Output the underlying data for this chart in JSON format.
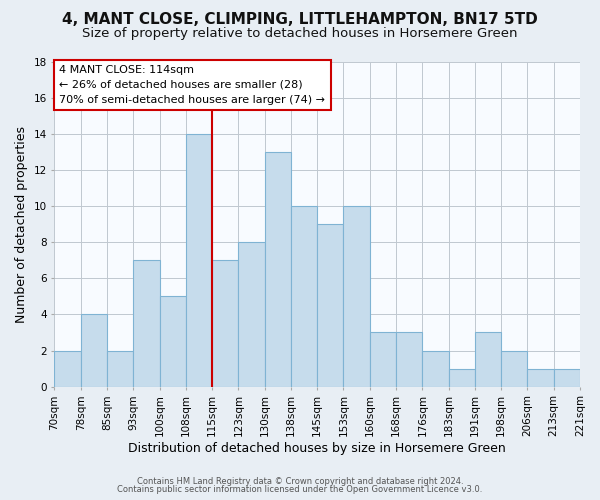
{
  "title": "4, MANT CLOSE, CLIMPING, LITTLEHAMPTON, BN17 5TD",
  "subtitle": "Size of property relative to detached houses in Horsemere Green",
  "xlabel": "Distribution of detached houses by size in Horsemere Green",
  "ylabel": "Number of detached properties",
  "footnote1": "Contains HM Land Registry data © Crown copyright and database right 2024.",
  "footnote2": "Contains public sector information licensed under the Open Government Licence v3.0.",
  "bin_edges_labels": [
    "70sqm",
    "78sqm",
    "85sqm",
    "93sqm",
    "100sqm",
    "108sqm",
    "115sqm",
    "123sqm",
    "130sqm",
    "138sqm",
    "145sqm",
    "153sqm",
    "160sqm",
    "168sqm",
    "176sqm",
    "183sqm",
    "191sqm",
    "198sqm",
    "206sqm",
    "213sqm",
    "221sqm"
  ],
  "bar_values": [
    2,
    4,
    2,
    7,
    5,
    14,
    7,
    8,
    13,
    10,
    9,
    10,
    3,
    3,
    2,
    1,
    3,
    2,
    1,
    1
  ],
  "bar_color": "#c6dcec",
  "bar_edge_color": "#7fb3d3",
  "vline_pos": 6,
  "vline_color": "#cc0000",
  "annotation_title": "4 MANT CLOSE: 114sqm",
  "annotation_line1": "← 26% of detached houses are smaller (28)",
  "annotation_line2": "70% of semi-detached houses are larger (74) →",
  "annotation_box_facecolor": "#ffffff",
  "annotation_box_edgecolor": "#cc0000",
  "ylim": [
    0,
    18
  ],
  "yticks": [
    0,
    2,
    4,
    6,
    8,
    10,
    12,
    14,
    16,
    18
  ],
  "background_color": "#e8eef4",
  "plot_background_color": "#f8fbff",
  "title_fontsize": 11,
  "subtitle_fontsize": 9.5,
  "xlabel_fontsize": 9,
  "ylabel_fontsize": 9,
  "tick_fontsize": 7.5,
  "footnote_fontsize": 6
}
